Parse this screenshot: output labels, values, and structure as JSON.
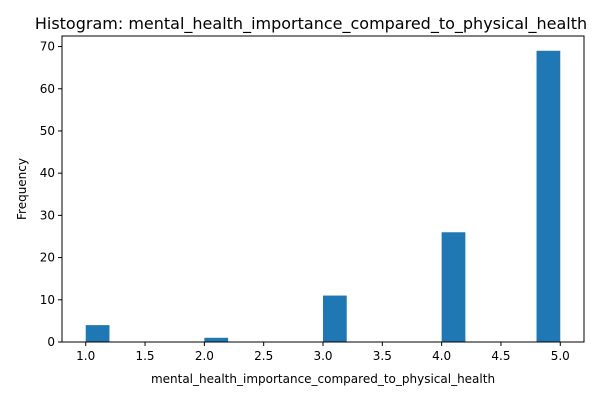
{
  "chart_data": {
    "type": "bar",
    "title": "Histogram: mental_health_importance_compared_to_physical_health",
    "xlabel": "mental_health_importance_compared_to_physical_health",
    "ylabel": "Frequency",
    "xlim": [
      0.8,
      5.2
    ],
    "ylim": [
      0,
      72.5
    ],
    "x_ticks": [
      "1.0",
      "1.5",
      "2.0",
      "2.5",
      "3.0",
      "3.5",
      "4.0",
      "4.5",
      "5.0"
    ],
    "y_ticks": [
      "0",
      "10",
      "20",
      "30",
      "40",
      "50",
      "60",
      "70"
    ],
    "bins": [
      {
        "x0": 1.0,
        "x1": 1.2,
        "count": 4
      },
      {
        "x0": 2.0,
        "x1": 2.2,
        "count": 1
      },
      {
        "x0": 3.0,
        "x1": 3.2,
        "count": 11
      },
      {
        "x0": 4.0,
        "x1": 4.2,
        "count": 26
      },
      {
        "x0": 4.8,
        "x1": 5.0,
        "count": 69
      }
    ],
    "bar_color": "#1f77b4",
    "grid": false
  }
}
